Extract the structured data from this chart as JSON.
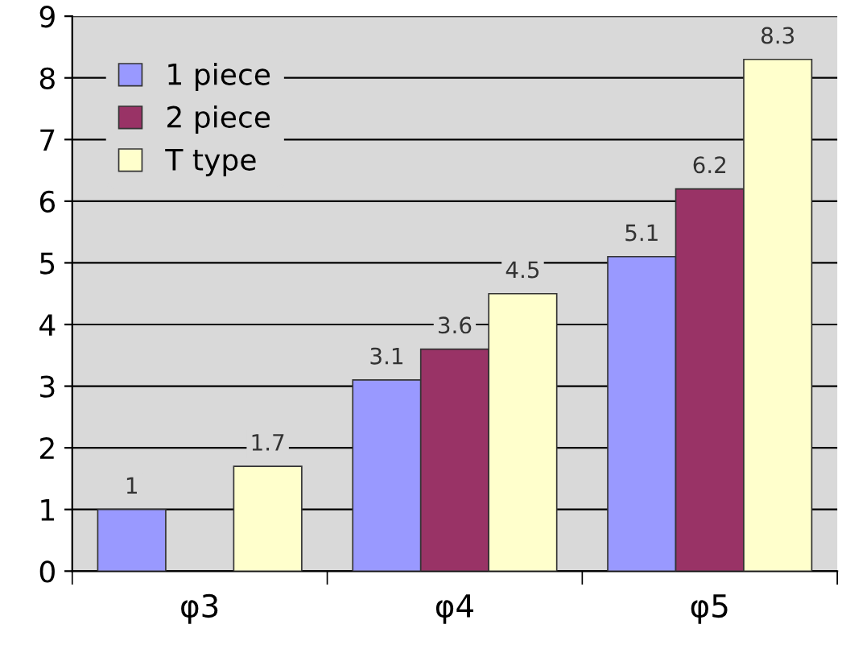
{
  "chart_data": {
    "type": "bar",
    "categories": [
      "φ3",
      "φ4",
      "φ5"
    ],
    "series": [
      {
        "name": "1 piece",
        "color": "#9999ff",
        "values": [
          1,
          3.1,
          5.1
        ]
      },
      {
        "name": "2 piece",
        "color": "#993366",
        "values": [
          null,
          3.6,
          6.2
        ]
      },
      {
        "name": "T type",
        "color": "#ffffcc",
        "values": [
          1.7,
          4.5,
          8.3
        ]
      }
    ],
    "ylim": [
      0,
      9
    ],
    "yticks": [
      0,
      1,
      2,
      3,
      4,
      5,
      6,
      7,
      8,
      9
    ],
    "grid": "y",
    "legend": "top left",
    "data_labels": true
  }
}
